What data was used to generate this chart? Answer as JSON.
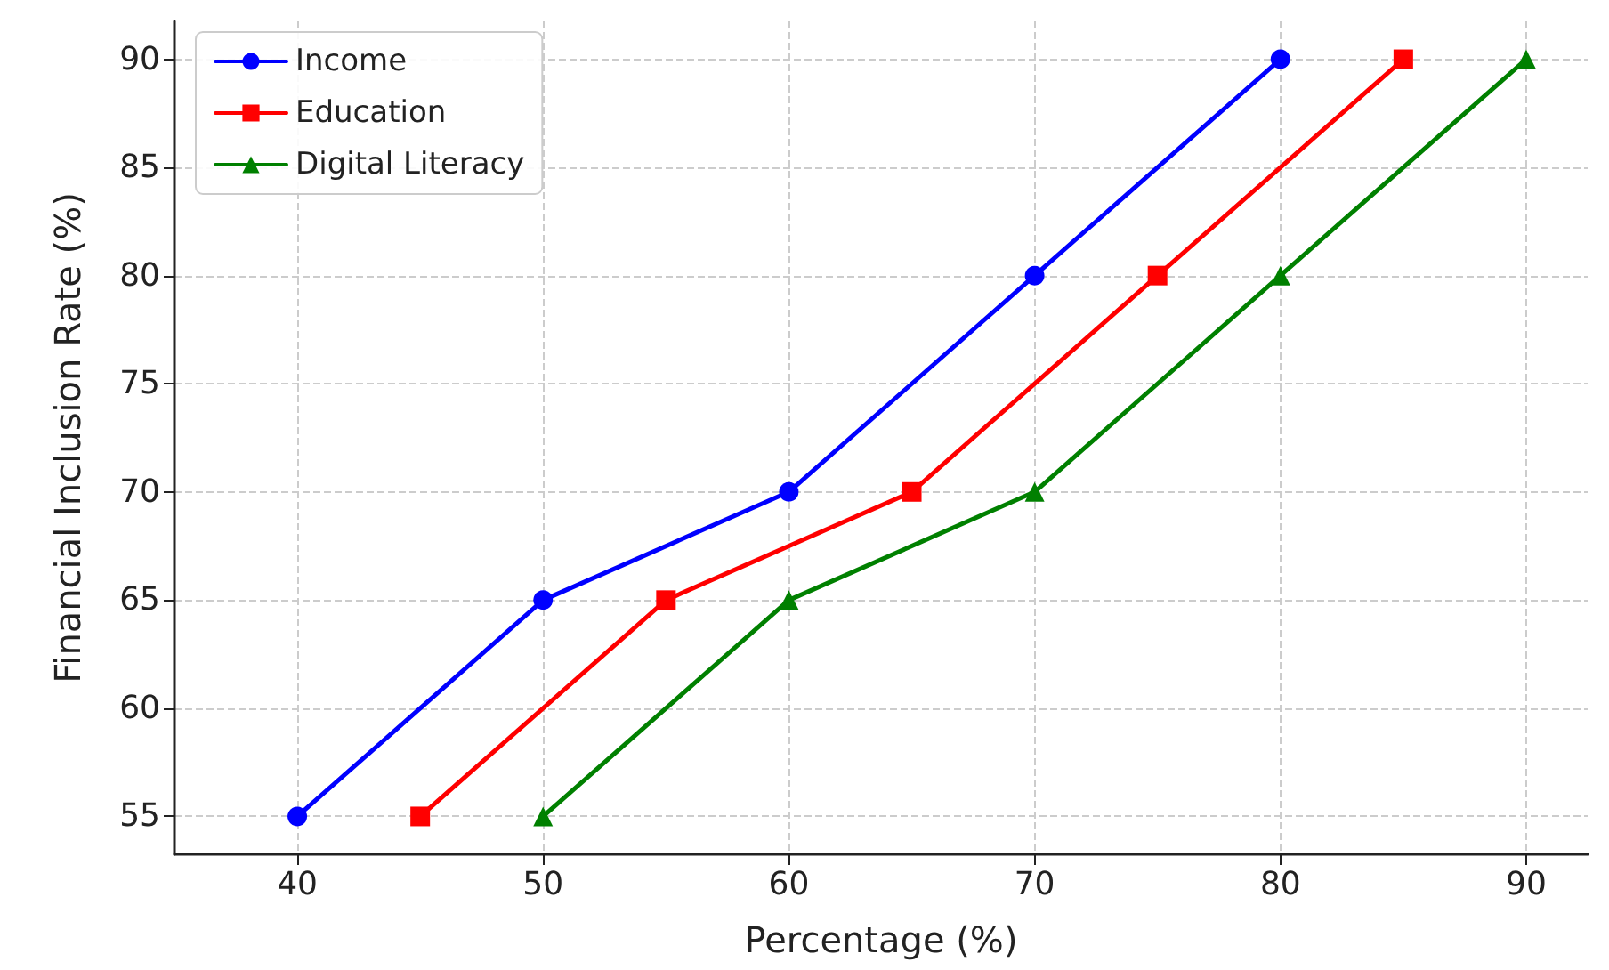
{
  "chart_data": {
    "type": "line",
    "xlabel": "Percentage (%)",
    "ylabel": "Financial Inclusion Rate (%)",
    "xlim": [
      35,
      92.5
    ],
    "xticks": [
      40,
      50,
      60,
      70,
      80,
      90
    ],
    "ylim": [
      53.25,
      91.75
    ],
    "yticks": [
      55,
      60,
      65,
      70,
      75,
      80,
      85,
      90
    ],
    "grid": true,
    "legend": "top left",
    "line_style": "solid",
    "series": [
      {
        "name": "Income",
        "color": "#0000ff",
        "marker": "circle",
        "x": [
          40,
          50,
          60,
          70,
          80
        ],
        "values": [
          55,
          65,
          70,
          80,
          90
        ]
      },
      {
        "name": "Education",
        "color": "#ff0000",
        "marker": "square",
        "x": [
          45,
          55,
          65,
          75,
          85
        ],
        "values": [
          55,
          65,
          70,
          80,
          90
        ]
      },
      {
        "name": "Digital Literacy",
        "color": "#008000",
        "marker": "triangle",
        "x": [
          50,
          60,
          70,
          80,
          90
        ],
        "values": [
          55,
          65,
          70,
          80,
          90
        ]
      }
    ]
  }
}
